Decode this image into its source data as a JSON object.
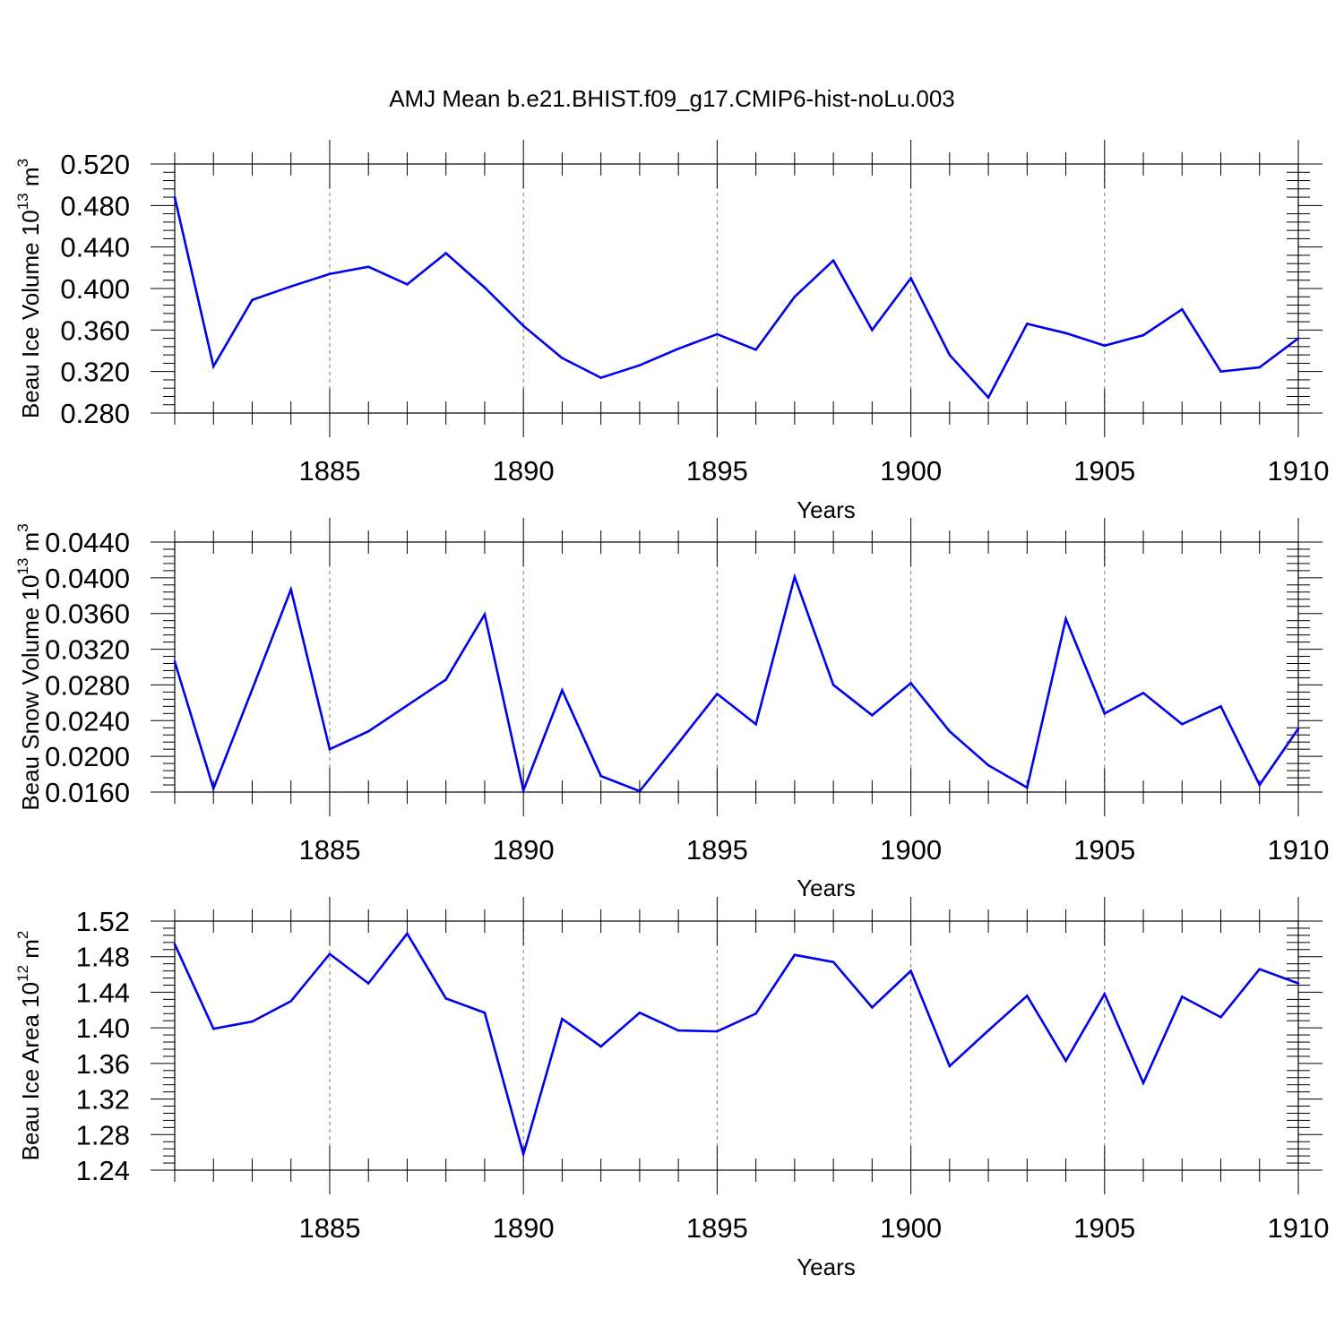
{
  "figure": {
    "title": "AMJ Mean b.e21.BHIST.f09_g17.CMIP6-hist-noLu.003"
  },
  "chart_data": [
    {
      "type": "line",
      "panel_key": "panel1",
      "title": "AMJ Mean b.e21.BHIST.f09_g17.CMIP6-hist-noLu.003",
      "xlabel": "Years",
      "ylabel_base": "Beau Ice Volume 10",
      "ylabel_exp": "13",
      "ylabel_unit": " m",
      "ylabel_unit_exp": "3",
      "xlim": [
        1881,
        1910
      ],
      "ylim": [
        0.28,
        0.52
      ],
      "xticks": [
        1885,
        1890,
        1895,
        1900,
        1905,
        1910
      ],
      "xtick_labels": [
        "1885",
        "1890",
        "1895",
        "1900",
        "1905",
        "1910"
      ],
      "yticks": [
        0.28,
        0.32,
        0.36,
        0.4,
        0.44,
        0.48,
        0.52
      ],
      "ytick_labels": [
        "0.280",
        "0.320",
        "0.360",
        "0.400",
        "0.440",
        "0.480",
        "0.520"
      ],
      "grid": "vertical dashed at major x ticks",
      "line_color": "#0000ee",
      "x": [
        1881,
        1882,
        1883,
        1884,
        1885,
        1886,
        1887,
        1888,
        1889,
        1890,
        1891,
        1892,
        1893,
        1894,
        1895,
        1896,
        1897,
        1898,
        1899,
        1900,
        1901,
        1902,
        1903,
        1904,
        1905,
        1906,
        1907,
        1908,
        1909,
        1910
      ],
      "series": [
        {
          "name": "Beau Ice Volume",
          "values": [
            0.488,
            0.325,
            0.389,
            0.402,
            0.414,
            0.421,
            0.404,
            0.434,
            0.401,
            0.364,
            0.333,
            0.314,
            0.326,
            0.342,
            0.356,
            0.341,
            0.392,
            0.427,
            0.36,
            0.41,
            0.336,
            0.295,
            0.366,
            0.357,
            0.345,
            0.355,
            0.38,
            0.32,
            0.324,
            0.352
          ]
        }
      ]
    },
    {
      "type": "line",
      "panel_key": "panel2",
      "xlabel": "Years",
      "ylabel_base": "Beau Snow Volume 10",
      "ylabel_exp": "13",
      "ylabel_unit": " m",
      "ylabel_unit_exp": "3",
      "xlim": [
        1881,
        1910
      ],
      "ylim": [
        0.016,
        0.044
      ],
      "xticks": [
        1885,
        1890,
        1895,
        1900,
        1905,
        1910
      ],
      "xtick_labels": [
        "1885",
        "1890",
        "1895",
        "1900",
        "1905",
        "1910"
      ],
      "yticks": [
        0.016,
        0.02,
        0.024,
        0.028,
        0.032,
        0.036,
        0.04,
        0.044
      ],
      "ytick_labels": [
        "0.0160",
        "0.0200",
        "0.0240",
        "0.0280",
        "0.0320",
        "0.0360",
        "0.0400",
        "0.0440"
      ],
      "grid": "vertical dashed at major x ticks",
      "line_color": "#0000ee",
      "x": [
        1881,
        1882,
        1883,
        1884,
        1885,
        1886,
        1887,
        1888,
        1889,
        1890,
        1891,
        1892,
        1893,
        1894,
        1895,
        1896,
        1897,
        1898,
        1899,
        1900,
        1901,
        1902,
        1903,
        1904,
        1905,
        1906,
        1907,
        1908,
        1909,
        1910
      ],
      "series": [
        {
          "name": "Beau Snow Volume",
          "values": [
            0.0306,
            0.0164,
            0.0275,
            0.0387,
            0.0208,
            0.0228,
            0.0257,
            0.0286,
            0.0359,
            0.0162,
            0.0274,
            0.0178,
            0.0161,
            0.0215,
            0.027,
            0.0236,
            0.0401,
            0.028,
            0.0246,
            0.0282,
            0.0228,
            0.019,
            0.0165,
            0.0354,
            0.0248,
            0.0271,
            0.0236,
            0.0256,
            0.0168,
            0.0231
          ]
        }
      ]
    },
    {
      "type": "line",
      "panel_key": "panel3",
      "xlabel": "Years",
      "ylabel_base": "Beau Ice Area 10",
      "ylabel_exp": "12",
      "ylabel_unit": " m",
      "ylabel_unit_exp": "2",
      "xlim": [
        1881,
        1910
      ],
      "ylim": [
        1.24,
        1.52
      ],
      "xticks": [
        1885,
        1890,
        1895,
        1900,
        1905,
        1910
      ],
      "xtick_labels": [
        "1885",
        "1890",
        "1895",
        "1900",
        "1905",
        "1910"
      ],
      "yticks": [
        1.24,
        1.28,
        1.32,
        1.36,
        1.4,
        1.44,
        1.48,
        1.52
      ],
      "ytick_labels": [
        "1.24",
        "1.28",
        "1.32",
        "1.36",
        "1.40",
        "1.44",
        "1.48",
        "1.52"
      ],
      "grid": "vertical dashed at major x ticks",
      "line_color": "#0000ee",
      "x": [
        1881,
        1882,
        1883,
        1884,
        1885,
        1886,
        1887,
        1888,
        1889,
        1890,
        1891,
        1892,
        1893,
        1894,
        1895,
        1896,
        1897,
        1898,
        1899,
        1900,
        1901,
        1902,
        1903,
        1904,
        1905,
        1906,
        1907,
        1908,
        1909,
        1910
      ],
      "series": [
        {
          "name": "Beau Ice Area",
          "values": [
            1.494,
            1.399,
            1.407,
            1.43,
            1.483,
            1.45,
            1.506,
            1.433,
            1.417,
            1.258,
            1.41,
            1.379,
            1.417,
            1.397,
            1.396,
            1.416,
            1.482,
            1.474,
            1.423,
            1.464,
            1.357,
            1.397,
            1.436,
            1.363,
            1.438,
            1.338,
            1.435,
            1.412,
            1.466,
            1.45
          ]
        }
      ]
    }
  ]
}
